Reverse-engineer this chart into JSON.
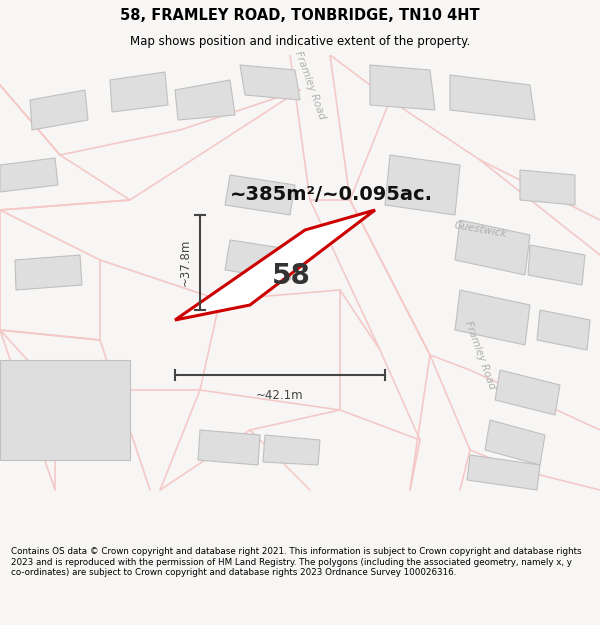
{
  "title": "58, FRAMLEY ROAD, TONBRIDGE, TN10 4HT",
  "subtitle": "Map shows position and indicative extent of the property.",
  "footer": "Contains OS data © Crown copyright and database right 2021. This information is subject to Crown copyright and database rights 2023 and is reproduced with the permission of HM Land Registry. The polygons (including the associated geometry, namely x, y co-ordinates) are subject to Crown copyright and database rights 2023 Ordnance Survey 100026316.",
  "area_label": "~385m²/~0.095ac.",
  "width_label": "~42.1m",
  "height_label": "~37.8m",
  "property_number": "58",
  "bg_color": "#f7f6f4",
  "map_bg": "#ffffff",
  "road_color": "#f5c8c8",
  "building_color": "#dedede",
  "building_edge": "#c0c0c0",
  "plot_color": "#ffffff",
  "plot_edge": "#cc0000",
  "road_label_color": "#b0b0b0",
  "dim_color": "#444444",
  "title_color": "#000000",
  "footer_color": "#000000",
  "road_lw": 1.2,
  "building_lw": 0.8
}
